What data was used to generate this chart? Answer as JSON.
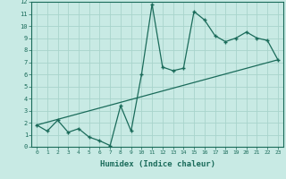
{
  "title": "",
  "xlabel": "Humidex (Indice chaleur)",
  "ylabel": "",
  "bg_color": "#c8eae4",
  "grid_color": "#a8d4cc",
  "line_color": "#1a6b5a",
  "marker": "+",
  "xlim": [
    -0.5,
    23.5
  ],
  "ylim": [
    0,
    12
  ],
  "xticks": [
    0,
    1,
    2,
    3,
    4,
    5,
    6,
    7,
    8,
    9,
    10,
    11,
    12,
    13,
    14,
    15,
    16,
    17,
    18,
    19,
    20,
    21,
    22,
    23
  ],
  "yticks": [
    0,
    1,
    2,
    3,
    4,
    5,
    6,
    7,
    8,
    9,
    10,
    11,
    12
  ],
  "data_x": [
    0,
    1,
    2,
    3,
    4,
    5,
    6,
    7,
    8,
    9,
    10,
    11,
    12,
    13,
    14,
    15,
    16,
    17,
    18,
    19,
    20,
    21,
    22,
    23
  ],
  "data_y": [
    1.8,
    1.3,
    2.2,
    1.2,
    1.5,
    0.8,
    0.5,
    0.1,
    3.4,
    1.3,
    6.0,
    11.8,
    6.6,
    6.3,
    6.5,
    11.2,
    10.5,
    9.2,
    8.7,
    9.0,
    9.5,
    9.0,
    8.8,
    7.2
  ],
  "trend_x0": 0,
  "trend_x1": 23,
  "trend_y0": 1.8,
  "trend_y1": 7.2,
  "figsize": [
    3.2,
    2.0
  ],
  "dpi": 100
}
